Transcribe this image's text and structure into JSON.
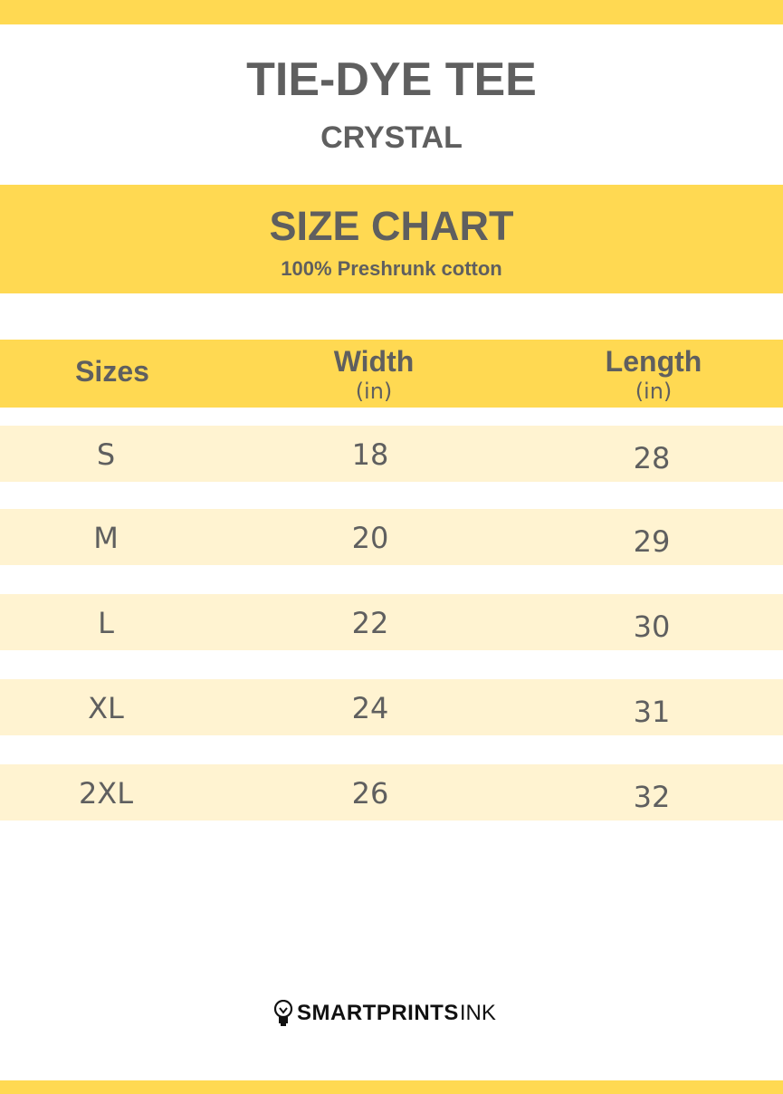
{
  "title": "TIE-DYE TEE",
  "subtitle": "CRYSTAL",
  "banner": {
    "heading": "SIZE CHART",
    "note": "100% Preshrunk cotton"
  },
  "table": {
    "headers": [
      {
        "label": "Sizes",
        "unit": ""
      },
      {
        "label": "Width",
        "unit": "(in)"
      },
      {
        "label": "Length",
        "unit": "(in)"
      }
    ],
    "rows": [
      [
        "S",
        "18",
        "28"
      ],
      [
        "M",
        "20",
        "29"
      ],
      [
        "L",
        "22",
        "30"
      ],
      [
        "XL",
        "24",
        "31"
      ],
      [
        "2XL",
        "26",
        "32"
      ]
    ]
  },
  "logo": {
    "bold": "SMARTPRINTS",
    "light": "INK",
    "icon": "lightbulb-icon"
  },
  "colors": {
    "accent": "#FFD952",
    "row": "#FFF3D1",
    "text": "#5F5F5F"
  }
}
